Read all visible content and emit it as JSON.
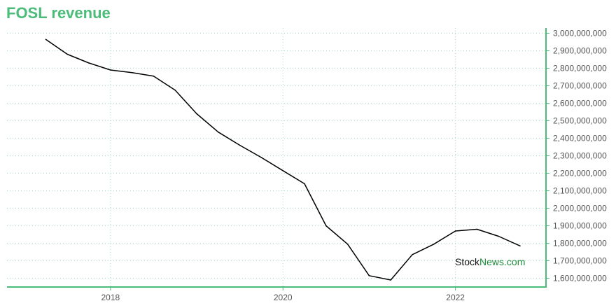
{
  "title": "FOSL revenue",
  "watermark": {
    "part1": "Stock",
    "part2": "News",
    "part3": ".com"
  },
  "colors": {
    "title": "#4cbc7a",
    "axis": "#4cbc7a",
    "grid": "#a8dcc0",
    "line": "#000000",
    "watermark_dark": "#111111",
    "watermark_green": "#1f8a3c"
  },
  "chart_data": {
    "type": "line",
    "title": "FOSL revenue",
    "xlabel": "",
    "ylabel": "",
    "x_ticks": [
      "2018",
      "2020",
      "2022"
    ],
    "y_ticks": [
      "3,000,000,000",
      "2,900,000,000",
      "2,800,000,000",
      "2,700,000,000",
      "2,600,000,000",
      "2,500,000,000",
      "2,400,000,000",
      "2,300,000,000",
      "2,200,000,000",
      "2,100,000,000",
      "2,000,000,000",
      "1,900,000,000",
      "1,800,000,000",
      "1,700,000,000",
      "1,600,000,000"
    ],
    "ylim": [
      1550000000,
      3030000000
    ],
    "xlim": [
      2016.8,
      2023.05
    ],
    "y_axis_side": "right",
    "grid": true,
    "series": [
      {
        "x": [
          2017.25,
          2017.5,
          2017.75,
          2018.0,
          2018.25,
          2018.5,
          2018.75,
          2019.0,
          2019.25,
          2019.5,
          2019.75,
          2020.0,
          2020.25,
          2020.5,
          2020.75,
          2021.0,
          2021.25,
          2021.5,
          2021.75,
          2022.0,
          2022.25,
          2022.5,
          2022.75
        ],
        "y": [
          2965000000,
          2880000000,
          2830000000,
          2790000000,
          2775000000,
          2755000000,
          2675000000,
          2540000000,
          2435000000,
          2360000000,
          2290000000,
          2215000000,
          2140000000,
          1900000000,
          1795000000,
          1615000000,
          1590000000,
          1735000000,
          1795000000,
          1870000000,
          1880000000,
          1840000000,
          1785000000
        ]
      }
    ]
  }
}
